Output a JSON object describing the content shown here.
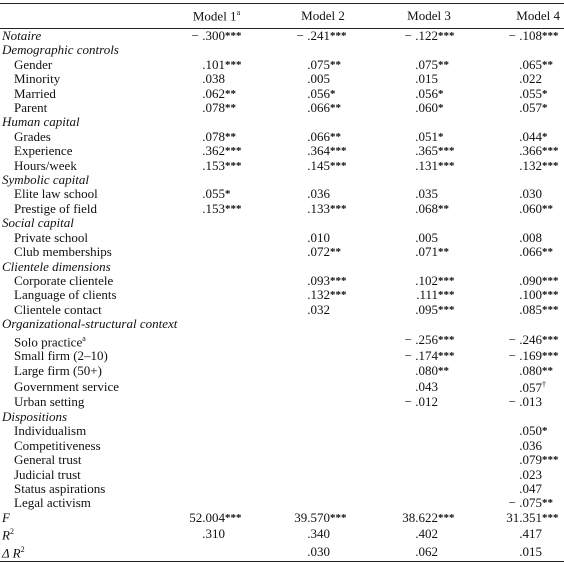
{
  "table": {
    "columns": [
      {
        "text": "Model 1",
        "sup": "a"
      },
      {
        "text": "Model 2"
      },
      {
        "text": "Model 3"
      },
      {
        "text": "Model 4"
      }
    ],
    "rows": [
      {
        "kind": "variable",
        "label": "Notaire",
        "cells": [
          {
            "value": "− .300",
            "stars": "***"
          },
          {
            "value": "− .241",
            "stars": "***"
          },
          {
            "value": "− .122",
            "stars": "***"
          },
          {
            "value": "− .108",
            "stars": "***"
          }
        ]
      },
      {
        "kind": "heading",
        "label": "Demographic controls"
      },
      {
        "kind": "item",
        "label": "Gender",
        "cells": [
          {
            "value": ".101",
            "stars": "***"
          },
          {
            "value": ".075",
            "stars": "**"
          },
          {
            "value": ".075",
            "stars": "**"
          },
          {
            "value": ".065",
            "stars": "**"
          }
        ]
      },
      {
        "kind": "item",
        "label": "Minority",
        "cells": [
          {
            "value": ".038"
          },
          {
            "value": ".005"
          },
          {
            "value": ".015"
          },
          {
            "value": ".022"
          }
        ]
      },
      {
        "kind": "item",
        "label": "Married",
        "cells": [
          {
            "value": ".062",
            "stars": "**"
          },
          {
            "value": ".056",
            "stars": "*"
          },
          {
            "value": ".056",
            "stars": "*"
          },
          {
            "value": ".055",
            "stars": "*"
          }
        ]
      },
      {
        "kind": "item",
        "label": "Parent",
        "cells": [
          {
            "value": ".078",
            "stars": "**"
          },
          {
            "value": ".066",
            "stars": "**"
          },
          {
            "value": ".060",
            "stars": "*"
          },
          {
            "value": ".057",
            "stars": "*"
          }
        ]
      },
      {
        "kind": "heading",
        "label": "Human capital"
      },
      {
        "kind": "item",
        "label": "Grades",
        "cells": [
          {
            "value": ".078",
            "stars": "**"
          },
          {
            "value": ".066",
            "stars": "**"
          },
          {
            "value": ".051",
            "stars": "*"
          },
          {
            "value": ".044",
            "stars": "*"
          }
        ]
      },
      {
        "kind": "item",
        "label": "Experience",
        "cells": [
          {
            "value": ".362",
            "stars": "***"
          },
          {
            "value": ".364",
            "stars": "***"
          },
          {
            "value": ".365",
            "stars": "***"
          },
          {
            "value": ".366",
            "stars": "***"
          }
        ]
      },
      {
        "kind": "item",
        "label": "Hours/week",
        "cells": [
          {
            "value": ".153",
            "stars": "***"
          },
          {
            "value": ".145",
            "stars": "***"
          },
          {
            "value": ".131",
            "stars": "***"
          },
          {
            "value": ".132",
            "stars": "***"
          }
        ]
      },
      {
        "kind": "heading",
        "label": "Symbolic capital"
      },
      {
        "kind": "item",
        "label": "Elite law school",
        "cells": [
          {
            "value": ".055",
            "stars": "*"
          },
          {
            "value": ".036"
          },
          {
            "value": ".035"
          },
          {
            "value": ".030"
          }
        ]
      },
      {
        "kind": "item",
        "label": "Prestige of field",
        "cells": [
          {
            "value": ".153",
            "stars": "***"
          },
          {
            "value": ".133",
            "stars": "***"
          },
          {
            "value": ".068",
            "stars": "**"
          },
          {
            "value": ".060",
            "stars": "**"
          }
        ]
      },
      {
        "kind": "heading",
        "label": "Social capital"
      },
      {
        "kind": "item",
        "label": "Private school",
        "cells": [
          null,
          {
            "value": ".010"
          },
          {
            "value": ".005"
          },
          {
            "value": ".008"
          }
        ]
      },
      {
        "kind": "item",
        "label": "Club memberships",
        "cells": [
          null,
          {
            "value": ".072",
            "stars": "**"
          },
          {
            "value": ".071",
            "stars": "**"
          },
          {
            "value": ".066",
            "stars": "**"
          }
        ]
      },
      {
        "kind": "heading",
        "label": "Clientele dimensions"
      },
      {
        "kind": "item",
        "label": "Corporate clientele",
        "cells": [
          null,
          {
            "value": ".093",
            "stars": "***"
          },
          {
            "value": ".102",
            "stars": "***"
          },
          {
            "value": ".090",
            "stars": "***"
          }
        ]
      },
      {
        "kind": "item",
        "label": "Language of clients",
        "cells": [
          null,
          {
            "value": ".132",
            "stars": "***"
          },
          {
            "value": ".111",
            "stars": "***"
          },
          {
            "value": ".100",
            "stars": "***"
          }
        ]
      },
      {
        "kind": "item",
        "label": "Clientele contact",
        "cells": [
          null,
          {
            "value": ".032"
          },
          {
            "value": ".095",
            "stars": "***"
          },
          {
            "value": ".085",
            "stars": "***"
          }
        ]
      },
      {
        "kind": "heading",
        "label": "Organizational-structural context"
      },
      {
        "kind": "item",
        "label": "Solo practice",
        "sup": "a",
        "cells": [
          null,
          null,
          {
            "value": "− .256",
            "stars": "***"
          },
          {
            "value": "− .246",
            "stars": "***"
          }
        ]
      },
      {
        "kind": "item",
        "label": "Small firm (2–10)",
        "cells": [
          null,
          null,
          {
            "value": "− .174",
            "stars": "***"
          },
          {
            "value": "− .169",
            "stars": "***"
          }
        ]
      },
      {
        "kind": "item",
        "label": "Large firm (50+)",
        "cells": [
          null,
          null,
          {
            "value": ".080",
            "stars": "**"
          },
          {
            "value": ".080",
            "stars": "**"
          }
        ]
      },
      {
        "kind": "item",
        "label": "Government service",
        "cells": [
          null,
          null,
          {
            "value": ".043"
          },
          {
            "value": ".057",
            "stars": "†"
          }
        ]
      },
      {
        "kind": "item",
        "label": "Urban setting",
        "cells": [
          null,
          null,
          {
            "value": "− .012"
          },
          {
            "value": "− .013"
          }
        ]
      },
      {
        "kind": "heading",
        "label": "Dispositions"
      },
      {
        "kind": "item",
        "label": "Individualism",
        "cells": [
          null,
          null,
          null,
          {
            "value": ".050",
            "stars": "*"
          }
        ]
      },
      {
        "kind": "item",
        "label": "Competitiveness",
        "cells": [
          null,
          null,
          null,
          {
            "value": ".036"
          }
        ]
      },
      {
        "kind": "item",
        "label": "General trust",
        "cells": [
          null,
          null,
          null,
          {
            "value": ".079",
            "stars": "***"
          }
        ]
      },
      {
        "kind": "item",
        "label": "Judicial trust",
        "cells": [
          null,
          null,
          null,
          {
            "value": ".023"
          }
        ]
      },
      {
        "kind": "item",
        "label": "Status aspirations",
        "cells": [
          null,
          null,
          null,
          {
            "value": ".047"
          }
        ]
      },
      {
        "kind": "item",
        "label": "Legal activism",
        "cells": [
          null,
          null,
          null,
          {
            "value": "− .075",
            "stars": "**"
          }
        ]
      },
      {
        "kind": "variable",
        "label": "F",
        "cells": [
          {
            "value": "52.004",
            "stars": "***"
          },
          {
            "value": "39.570",
            "stars": "***"
          },
          {
            "value": "38.622",
            "stars": "***"
          },
          {
            "value": "31.351",
            "stars": "***"
          }
        ]
      },
      {
        "kind": "variable",
        "label": "R",
        "sup": "2",
        "cells": [
          {
            "value": ".310"
          },
          {
            "value": ".340"
          },
          {
            "value": ".402"
          },
          {
            "value": ".417"
          }
        ]
      },
      {
        "kind": "variable",
        "label": "Δ R",
        "sup": "2",
        "cells": [
          null,
          {
            "value": ".030"
          },
          {
            "value": ".062"
          },
          {
            "value": ".015"
          }
        ]
      }
    ]
  }
}
